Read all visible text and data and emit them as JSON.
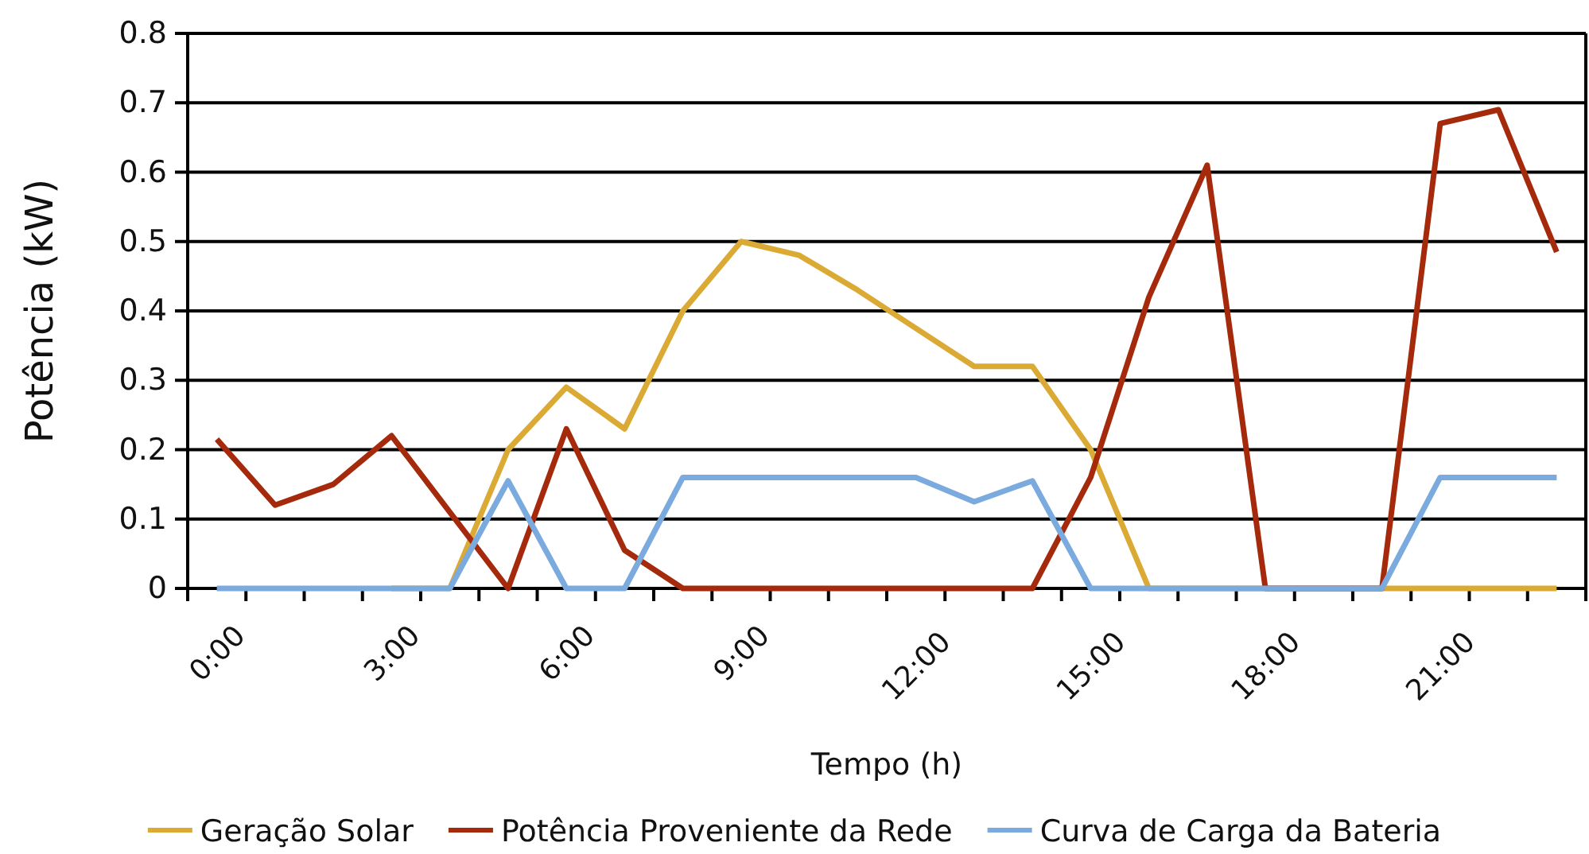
{
  "chart_data": {
    "type": "line",
    "xlabel": "Tempo (h)",
    "ylabel": "Potência (kW)",
    "categories": [
      "0:00",
      null,
      null,
      "3:00",
      null,
      null,
      "6:00",
      null,
      null,
      "9:00",
      null,
      null,
      "12:00",
      null,
      null,
      "15:00",
      null,
      null,
      "18:00",
      null,
      null,
      "21:00",
      null,
      null
    ],
    "series": [
      {
        "name": "Geração Solar",
        "color": "#dbaa34",
        "values": [
          null,
          null,
          null,
          0,
          0,
          0.2,
          0.29,
          0.23,
          0.4,
          0.5,
          0.48,
          0.43,
          0.375,
          0.32,
          0.32,
          0.2,
          0,
          0,
          0,
          0,
          0,
          0,
          0,
          0
        ]
      },
      {
        "name": "Potência Proveniente da Rede",
        "color": "#a52a0c",
        "values": [
          0.215,
          0.12,
          0.15,
          0.22,
          0.11,
          0,
          0.23,
          0.055,
          0,
          0,
          0,
          0,
          0,
          0,
          0,
          0.16,
          0.42,
          0.61,
          0,
          0,
          0,
          0.67,
          0.69,
          0.485
        ]
      },
      {
        "name": "Curva de Carga da Bateria",
        "color": "#7aaade",
        "values": [
          0,
          0,
          0,
          0,
          0,
          0.155,
          0,
          0,
          0.16,
          0.16,
          0.16,
          0.16,
          0.16,
          0.125,
          0.155,
          0,
          0,
          0,
          0,
          0,
          0,
          0.16,
          0.16,
          0.16
        ]
      }
    ],
    "ylim": [
      0,
      0.8
    ],
    "yticks": [
      0,
      0.1,
      0.2,
      0.3,
      0.4,
      0.5,
      0.6,
      0.7,
      0.8
    ],
    "grid": "y",
    "legend": "bottom",
    "marker": "none",
    "line_style": "solid"
  }
}
